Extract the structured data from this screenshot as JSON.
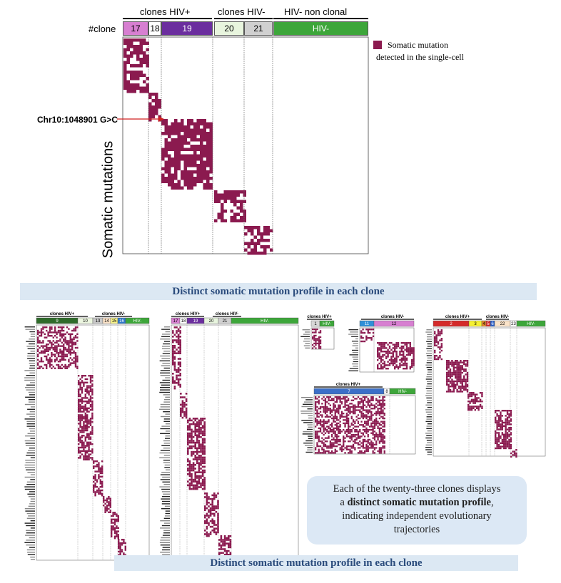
{
  "main_figure": {
    "groups": [
      "clones HIV+",
      "clones HIV-",
      "HIV- non clonal"
    ],
    "clone_row_label": "#clone",
    "clones": [
      {
        "label": "17",
        "color": "#d77fd1"
      },
      {
        "label": "18",
        "color": "#ffffff"
      },
      {
        "label": "19",
        "color": "#6b2e9e"
      },
      {
        "label": "20",
        "color": "#e8f5de"
      },
      {
        "label": "21",
        "color": "#d0d0d0"
      },
      {
        "label": "HIV-",
        "color": "#3da63a"
      }
    ],
    "annotation": "Chr10:1048901 G>C",
    "y_axis_label": "Somatic mutations",
    "legend_text": [
      "Somatic mutation",
      "detected in the single-cell"
    ],
    "mutation_color": "#8b1a4f"
  },
  "banner_top": "Distinct somatic mutation profile in each clone",
  "banner_bottom": "Distinct somatic mutation profile in each clone",
  "callout": {
    "line1": "Each of the twenty-three clones displays",
    "line2_pre": "a",
    "line2_bold": "distinct somatic mutation profile",
    "line2_post": ",",
    "line3": "indicating independent evolutionary",
    "line4": "trajectories"
  },
  "panels": [
    {
      "groups": [
        "clones HIV+",
        "clones HIV-"
      ],
      "clones": [
        {
          "label": "9",
          "color": "#2e6b2a"
        },
        {
          "label": "10",
          "color": "#ecf6e0"
        },
        {
          "label": "13",
          "color": "#c8c8c8"
        },
        {
          "label": "14",
          "color": "#fbe3c8"
        },
        {
          "label": "15",
          "color": "#f7f38a"
        },
        {
          "label": "16",
          "color": "#2f78c8"
        },
        {
          "label": "HIV-",
          "color": "#3da63a"
        }
      ]
    },
    {
      "groups": [
        "clones HIV+",
        "clones HIV-"
      ],
      "clones": [
        {
          "label": "17",
          "color": "#d77fd1"
        },
        {
          "label": "18",
          "color": "#ffffff"
        },
        {
          "label": "19",
          "color": "#6b2e9e"
        },
        {
          "label": "20",
          "color": "#e8f5de"
        },
        {
          "label": "21",
          "color": "#d0d0d0"
        },
        {
          "label": "HIV-",
          "color": "#3da63a"
        }
      ]
    },
    {
      "groups": [
        "clones HIV+",
        "clones HIV-"
      ],
      "clones": [
        {
          "label": "1",
          "color": "#d8d8d8"
        },
        {
          "label": "HIV-",
          "color": "#3da63a"
        },
        {
          "label": "11",
          "color": "#2f8fd8"
        },
        {
          "label": "12",
          "color": "#d77fd1"
        }
      ]
    },
    {
      "groups": [
        "clones HIV+",
        "clones HIV-"
      ],
      "clones": [
        {
          "label": "2",
          "color": "#d42a2a"
        },
        {
          "label": "3",
          "color": "#f5f033"
        },
        {
          "label": "4",
          "color": "#e8892b"
        },
        {
          "label": "5",
          "color": "#d42a2a"
        },
        {
          "label": "6",
          "color": "#2a5fc8"
        },
        {
          "label": "22",
          "color": "#fbe3c8"
        },
        {
          "label": "23",
          "color": "#ffffff"
        },
        {
          "label": "HIV-",
          "color": "#3da63a"
        }
      ]
    },
    {
      "groups": [
        "clones HIV+"
      ],
      "clones": [
        {
          "label": "7",
          "color": "#3b6fc8"
        },
        {
          "label": "8",
          "color": "#ffffff"
        },
        {
          "label": "HIV-",
          "color": "#3da63a"
        }
      ]
    }
  ]
}
